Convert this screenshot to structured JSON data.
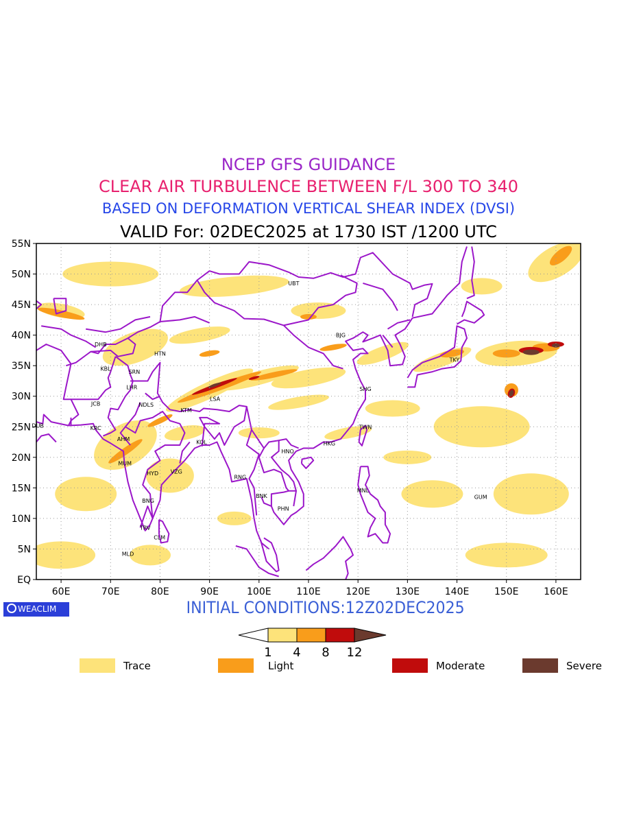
{
  "titles": {
    "line1": "NCEP GFS GUIDANCE",
    "line2": "CLEAR AIR TURBULENCE BETWEEN F/L 300 TO 340",
    "line3": "BASED ON DEFORMATION VERTICAL SHEAR INDEX (DVSI)",
    "line4": "VALID For: 02DEC2025 at 1730 IST /1200 UTC"
  },
  "colors": {
    "title1": "#9b27c8",
    "title2": "#e8206e",
    "title3": "#2747e8",
    "coast": "#9b16c9",
    "trace": "#fde37a",
    "light": "#f99d1b",
    "moderate": "#c00c0c",
    "severe": "#6b3a2e"
  },
  "axes": {
    "lat_labels": [
      "55N",
      "50N",
      "45N",
      "40N",
      "35N",
      "30N",
      "25N",
      "20N",
      "15N",
      "10N",
      "5N",
      "EQ"
    ],
    "lon_labels": [
      "60E",
      "70E",
      "80E",
      "90E",
      "100E",
      "110E",
      "120E",
      "130E",
      "140E",
      "150E",
      "160E"
    ]
  },
  "cities": [
    {
      "name": "UBT",
      "lon": 107,
      "lat": 48.5
    },
    {
      "name": "BJG",
      "lon": 116.5,
      "lat": 40
    },
    {
      "name": "TKY",
      "lon": 139.5,
      "lat": 36
    },
    {
      "name": "DHB",
      "lon": 68,
      "lat": 38.5
    },
    {
      "name": "HTN",
      "lon": 80,
      "lat": 37
    },
    {
      "name": "KBL",
      "lon": 69,
      "lat": 34.5
    },
    {
      "name": "SRN",
      "lon": 74.8,
      "lat": 34
    },
    {
      "name": "LHR",
      "lon": 74.3,
      "lat": 31.5
    },
    {
      "name": "SHG",
      "lon": 121.5,
      "lat": 31.2
    },
    {
      "name": "LSA",
      "lon": 91.1,
      "lat": 29.6
    },
    {
      "name": "JCB",
      "lon": 67,
      "lat": 28.8
    },
    {
      "name": "NDLS",
      "lon": 77.2,
      "lat": 28.6
    },
    {
      "name": "KTM",
      "lon": 85.3,
      "lat": 27.7
    },
    {
      "name": "DUB",
      "lon": 55.3,
      "lat": 25.2
    },
    {
      "name": "KRC",
      "lon": 67,
      "lat": 24.8
    },
    {
      "name": "TWN",
      "lon": 121.5,
      "lat": 25
    },
    {
      "name": "AHM",
      "lon": 72.6,
      "lat": 23
    },
    {
      "name": "KOL",
      "lon": 88.4,
      "lat": 22.5
    },
    {
      "name": "HKG",
      "lon": 114.2,
      "lat": 22.3
    },
    {
      "name": "HNO",
      "lon": 105.8,
      "lat": 21
    },
    {
      "name": "MUM",
      "lon": 72.9,
      "lat": 19
    },
    {
      "name": "HYD",
      "lon": 78.5,
      "lat": 17.4
    },
    {
      "name": "VZG",
      "lon": 83.3,
      "lat": 17.7
    },
    {
      "name": "RNG",
      "lon": 96.2,
      "lat": 16.8
    },
    {
      "name": "MNL",
      "lon": 121,
      "lat": 14.6
    },
    {
      "name": "GUM",
      "lon": 144.8,
      "lat": 13.5
    },
    {
      "name": "BNK",
      "lon": 100.5,
      "lat": 13.7
    },
    {
      "name": "BNG",
      "lon": 77.6,
      "lat": 12.9
    },
    {
      "name": "PHN",
      "lon": 104.9,
      "lat": 11.6
    },
    {
      "name": "TRV",
      "lon": 77,
      "lat": 8.5
    },
    {
      "name": "CLM",
      "lon": 79.9,
      "lat": 6.9
    },
    {
      "name": "MLD",
      "lon": 73.5,
      "lat": 4.2
    }
  ],
  "logo": "WEACLIM",
  "initial_conditions": "INITIAL CONDITIONS:12Z02DEC2025",
  "colorbar": {
    "ticks": [
      "1",
      "4",
      "8",
      "12"
    ]
  },
  "legend": [
    {
      "label": "Trace",
      "color": "#fde37a"
    },
    {
      "label": "Light",
      "color": "#f99d1b"
    },
    {
      "label": "Moderate",
      "color": "#c00c0c"
    },
    {
      "label": "Severe",
      "color": "#6b3a2e"
    }
  ]
}
